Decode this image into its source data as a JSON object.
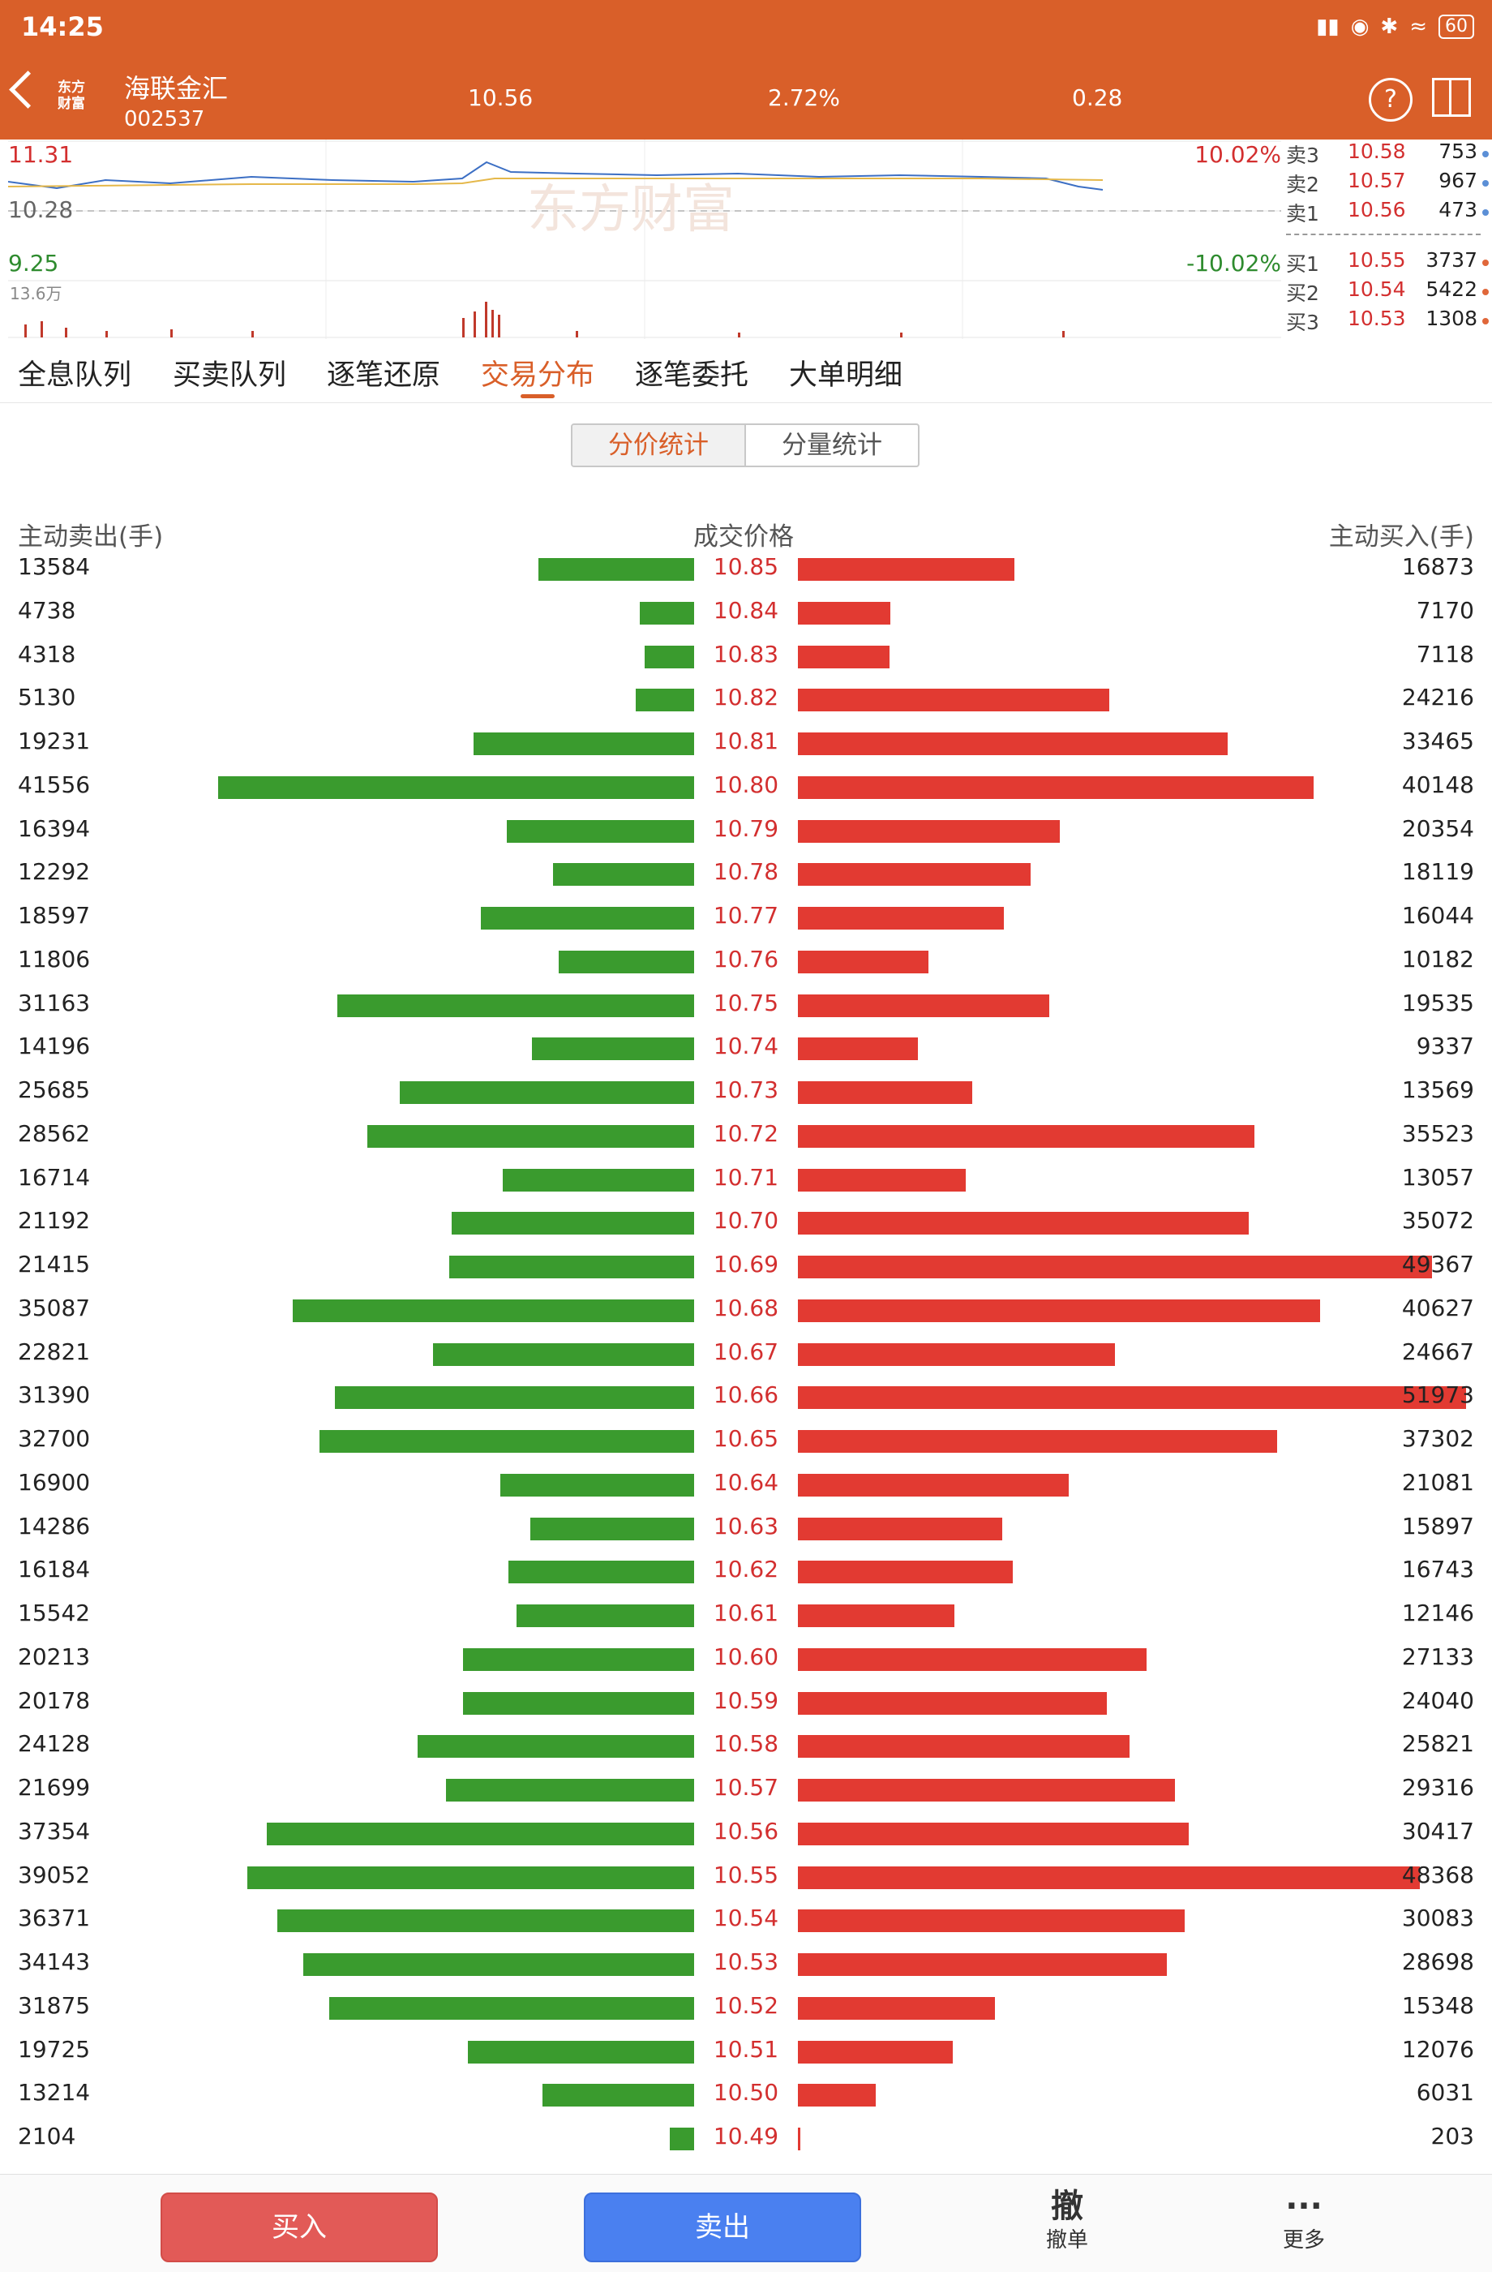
{
  "status_bar": {
    "time": "14:25",
    "battery": "60"
  },
  "header": {
    "logo": "东方\n财富",
    "stock_name": "海联金汇",
    "stock_code": "002537",
    "price": "10.56",
    "change_pct": "2.72%",
    "change": "0.28"
  },
  "mini_chart": {
    "high": "11.31",
    "prev_close": "10.28",
    "low": "9.25",
    "volume_max": "13.6万",
    "limit_up": "10.02%",
    "limit_down": "-10.02%",
    "watermark": "东方财富"
  },
  "order_book": {
    "asks": [
      {
        "label": "卖3",
        "price": "10.58",
        "vol": "753"
      },
      {
        "label": "卖2",
        "price": "10.57",
        "vol": "967"
      },
      {
        "label": "卖1",
        "price": "10.56",
        "vol": "473"
      }
    ],
    "bids": [
      {
        "label": "买1",
        "price": "10.55",
        "vol": "3737"
      },
      {
        "label": "买2",
        "price": "10.54",
        "vol": "5422"
      },
      {
        "label": "买3",
        "price": "10.53",
        "vol": "1308"
      }
    ]
  },
  "tabs": [
    "全息队列",
    "买卖队列",
    "逐笔还原",
    "交易分布",
    "逐笔委托",
    "大单明细"
  ],
  "active_tab": 3,
  "segmented": {
    "left": "分价统计",
    "right": "分量统计"
  },
  "columns": {
    "sell": "主动卖出(手)",
    "price": "成交价格",
    "buy": "主动买入(手)"
  },
  "distribution": [
    {
      "price": "10.85",
      "sell": 13584,
      "buy": 16873
    },
    {
      "price": "10.84",
      "sell": 4738,
      "buy": 7170
    },
    {
      "price": "10.83",
      "sell": 4318,
      "buy": 7118
    },
    {
      "price": "10.82",
      "sell": 5130,
      "buy": 24216
    },
    {
      "price": "10.81",
      "sell": 19231,
      "buy": 33465
    },
    {
      "price": "10.80",
      "sell": 41556,
      "buy": 40148
    },
    {
      "price": "10.79",
      "sell": 16394,
      "buy": 20354
    },
    {
      "price": "10.78",
      "sell": 12292,
      "buy": 18119
    },
    {
      "price": "10.77",
      "sell": 18597,
      "buy": 16044
    },
    {
      "price": "10.76",
      "sell": 11806,
      "buy": 10182
    },
    {
      "price": "10.75",
      "sell": 31163,
      "buy": 19535
    },
    {
      "price": "10.74",
      "sell": 14196,
      "buy": 9337
    },
    {
      "price": "10.73",
      "sell": 25685,
      "buy": 13569
    },
    {
      "price": "10.72",
      "sell": 28562,
      "buy": 35523
    },
    {
      "price": "10.71",
      "sell": 16714,
      "buy": 13057
    },
    {
      "price": "10.70",
      "sell": 21192,
      "buy": 35072
    },
    {
      "price": "10.69",
      "sell": 21415,
      "buy": 49367
    },
    {
      "price": "10.68",
      "sell": 35087,
      "buy": 40627
    },
    {
      "price": "10.67",
      "sell": 22821,
      "buy": 24667
    },
    {
      "price": "10.66",
      "sell": 31390,
      "buy": 51973
    },
    {
      "price": "10.65",
      "sell": 32700,
      "buy": 37302
    },
    {
      "price": "10.64",
      "sell": 16900,
      "buy": 21081
    },
    {
      "price": "10.63",
      "sell": 14286,
      "buy": 15897
    },
    {
      "price": "10.62",
      "sell": 16184,
      "buy": 16743
    },
    {
      "price": "10.61",
      "sell": 15542,
      "buy": 12146
    },
    {
      "price": "10.60",
      "sell": 20213,
      "buy": 27133
    },
    {
      "price": "10.59",
      "sell": 20178,
      "buy": 24040
    },
    {
      "price": "10.58",
      "sell": 24128,
      "buy": 25821
    },
    {
      "price": "10.57",
      "sell": 21699,
      "buy": 29316
    },
    {
      "price": "10.56",
      "sell": 37354,
      "buy": 30417
    },
    {
      "price": "10.55",
      "sell": 39052,
      "buy": 48368
    },
    {
      "price": "10.54",
      "sell": 36371,
      "buy": 30083
    },
    {
      "price": "10.53",
      "sell": 34143,
      "buy": 28698
    },
    {
      "price": "10.52",
      "sell": 31875,
      "buy": 15348
    },
    {
      "price": "10.51",
      "sell": 19725,
      "buy": 12076
    },
    {
      "price": "10.50",
      "sell": 13214,
      "buy": 6031
    },
    {
      "price": "10.49",
      "sell": 2104,
      "buy": 203
    }
  ],
  "footer": {
    "buy": "买入",
    "sell": "卖出",
    "cancel_icon": "撤",
    "cancel": "撤单",
    "more_icon": "···",
    "more": "更多"
  },
  "colors": {
    "brand": "#d95f29",
    "sell_bar": "#3a9b2e",
    "buy_bar": "#e23a32",
    "price_text": "#d32f2f"
  }
}
